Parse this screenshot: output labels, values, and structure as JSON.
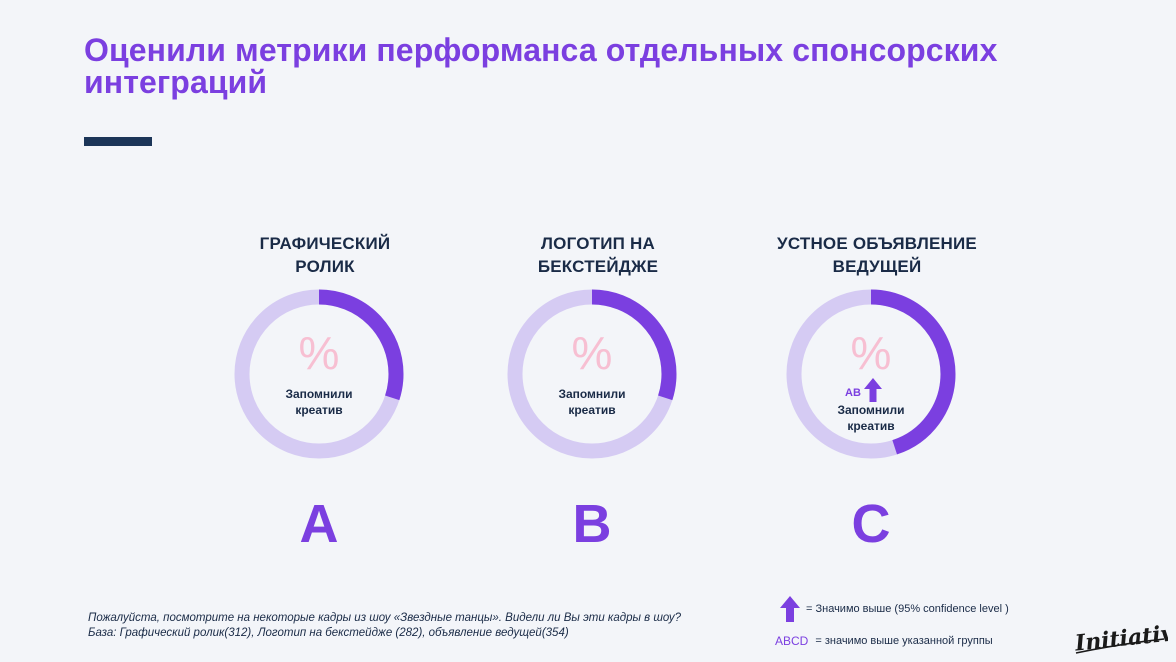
{
  "slide": {
    "title": "Оценили метрики перформанса отдельных спонсорских интеграций"
  },
  "chart_data": {
    "type": "pie",
    "style": "donut",
    "value_note": "fill fraction estimated from ring; no value printed",
    "series": [
      {
        "letter": "A",
        "title_lines": [
          "ГРАФИЧЕСКИЙ",
          "РОЛИК"
        ],
        "value_text": "%",
        "metric_lines": [
          "Запомнили",
          "креатив"
        ],
        "fill_fraction": 0.3,
        "significance": ""
      },
      {
        "letter": "B",
        "title_lines": [
          "ЛОГОТИП НА",
          "БЕКСТЕЙДЖЕ"
        ],
        "value_text": "%",
        "metric_lines": [
          "Запомнили",
          "креатив"
        ],
        "fill_fraction": 0.3,
        "significance": ""
      },
      {
        "letter": "C",
        "title_lines": [
          "УСТНОЕ ОБЪЯВЛЕНИЕ",
          "ВЕДУЩЕЙ"
        ],
        "value_text": "%",
        "metric_lines": [
          "Запомнили",
          "креатив"
        ],
        "fill_fraction": 0.45,
        "significance": "AB"
      }
    ],
    "colors": {
      "fill": "#7b3fe0",
      "track": "#d5cbf3",
      "percent": "#f7bfd2"
    }
  },
  "footnote": {
    "line1": "Пожалуйста, посмотрите на некоторые кадры из шоу «Звездные танцы». Видели ли Вы эти кадры в шоу?",
    "line2": "База: Графический ролик(312), Логотип на бекстейдже (282), объявление ведущей(354)"
  },
  "legend": {
    "arrow_text": "= Значимо выше  (95% confidence level )",
    "abcd_letters": "ABCD",
    "abcd_text": "= значимо выше указанной группы"
  },
  "brand": {
    "logo": "Initiative",
    "icon": "initiative-logo"
  }
}
